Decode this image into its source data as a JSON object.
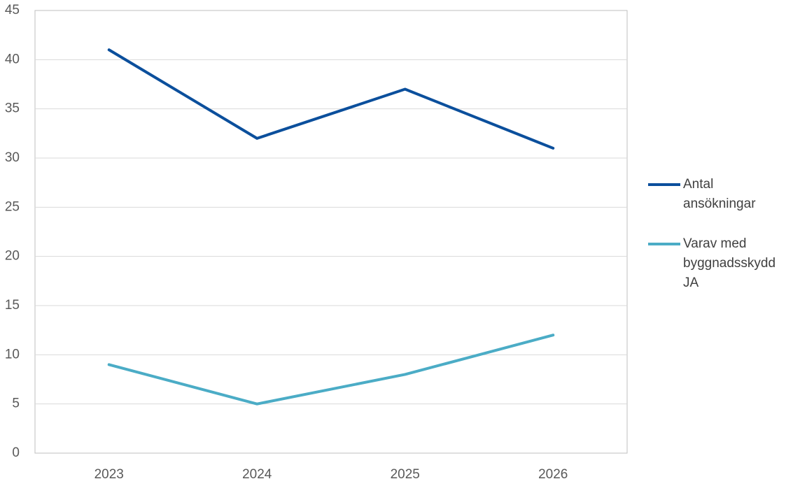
{
  "chart_data": {
    "type": "line",
    "categories": [
      "2023",
      "2024",
      "2025",
      "2026"
    ],
    "series": [
      {
        "name": "Antal ansökningar",
        "color": "#0b4f9c",
        "values": [
          41,
          32,
          37,
          31
        ]
      },
      {
        "name": "Varav med byggnadsskydd JA",
        "color": "#4bacc6",
        "values": [
          9,
          5,
          8,
          12
        ]
      }
    ],
    "ylim": [
      0,
      45
    ],
    "yticks": [
      0,
      5,
      10,
      15,
      20,
      25,
      30,
      35,
      40,
      45
    ],
    "grid": true,
    "legend": "right"
  }
}
